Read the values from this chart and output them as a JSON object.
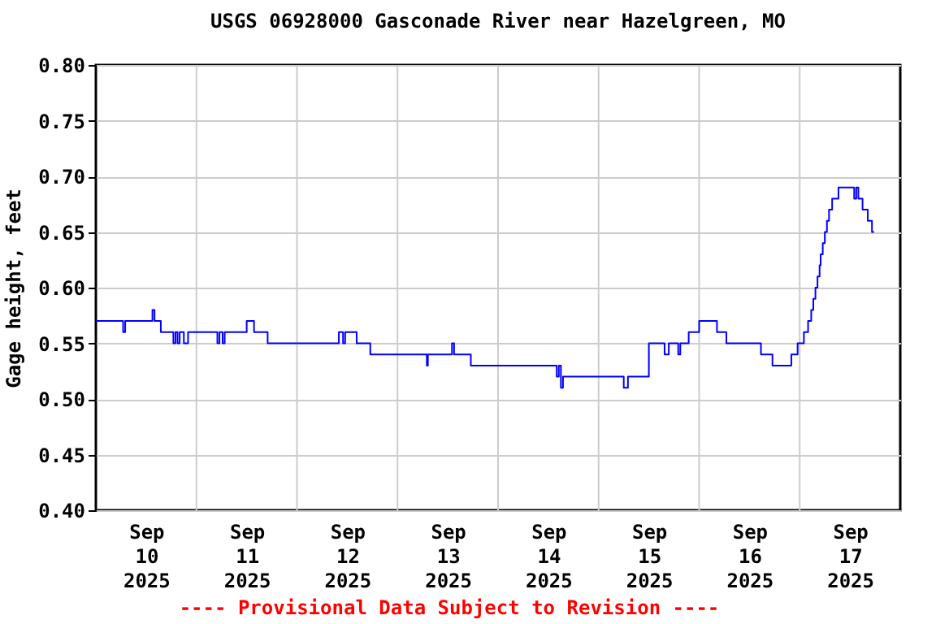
{
  "chart_data": {
    "type": "step",
    "title": "USGS 06928000 Gasconade River near Hazelgreen, MO",
    "ylabel": "Gage height, feet",
    "annotations": [
      "---- Provisional Data Subject to Revision ----"
    ],
    "x": [
      "2025-09-10T00:00",
      "2025-09-10T06:30",
      "2025-09-10T07:00",
      "2025-09-10T13:30",
      "2025-09-10T14:00",
      "2025-09-10T15:30",
      "2025-09-10T18:30",
      "2025-09-10T19:00",
      "2025-09-10T19:30",
      "2025-09-10T20:00",
      "2025-09-10T21:00",
      "2025-09-10T22:00",
      "2025-09-11T05:00",
      "2025-09-11T05:30",
      "2025-09-11T06:15",
      "2025-09-11T06:45",
      "2025-09-11T12:00",
      "2025-09-11T13:45",
      "2025-09-11T17:00",
      "2025-09-12T10:00",
      "2025-09-12T11:00",
      "2025-09-12T11:30",
      "2025-09-12T14:15",
      "2025-09-12T17:30",
      "2025-09-13T07:00",
      "2025-09-13T07:15",
      "2025-09-13T13:00",
      "2025-09-13T13:30",
      "2025-09-13T17:30",
      "2025-09-14T14:00",
      "2025-09-14T14:30",
      "2025-09-14T15:00",
      "2025-09-14T15:30",
      "2025-09-15T06:00",
      "2025-09-15T07:00",
      "2025-09-15T12:00",
      "2025-09-15T15:45",
      "2025-09-15T16:45",
      "2025-09-15T19:00",
      "2025-09-15T19:30",
      "2025-09-15T21:30",
      "2025-09-16T00:00",
      "2025-09-16T04:15",
      "2025-09-16T06:30",
      "2025-09-16T14:45",
      "2025-09-16T17:30",
      "2025-09-16T22:00",
      "2025-09-16T23:30",
      "2025-09-17T01:00",
      "2025-09-17T02:00",
      "2025-09-17T02:45",
      "2025-09-17T03:15",
      "2025-09-17T03:45",
      "2025-09-17T04:15",
      "2025-09-17T04:45",
      "2025-09-17T05:00",
      "2025-09-17T05:30",
      "2025-09-17T06:00",
      "2025-09-17T06:30",
      "2025-09-17T07:00",
      "2025-09-17T07:45",
      "2025-09-17T09:15",
      "2025-09-17T13:00",
      "2025-09-17T13:30",
      "2025-09-17T14:00",
      "2025-09-17T15:00",
      "2025-09-17T16:15",
      "2025-09-17T17:15",
      "2025-09-17T17:45"
    ],
    "series": [
      {
        "color": "#0000ff",
        "values": [
          0.57,
          0.56,
          0.57,
          0.58,
          0.57,
          0.56,
          0.55,
          0.56,
          0.55,
          0.56,
          0.55,
          0.56,
          0.55,
          0.56,
          0.55,
          0.56,
          0.57,
          0.56,
          0.55,
          0.56,
          0.55,
          0.56,
          0.55,
          0.54,
          0.53,
          0.54,
          0.55,
          0.54,
          0.53,
          0.52,
          0.53,
          0.51,
          0.52,
          0.51,
          0.52,
          0.55,
          0.54,
          0.55,
          0.54,
          0.55,
          0.56,
          0.57,
          0.56,
          0.55,
          0.54,
          0.53,
          0.54,
          0.55,
          0.56,
          0.57,
          0.58,
          0.59,
          0.6,
          0.61,
          0.62,
          0.63,
          0.64,
          0.65,
          0.66,
          0.67,
          0.68,
          0.69,
          0.68,
          0.69,
          0.68,
          0.67,
          0.66,
          0.65,
          0.65
        ]
      }
    ],
    "xlim": [
      "2025-09-10T00:00",
      "2025-09-18T00:00"
    ],
    "xticks": [
      {
        "value": "2025-09-10T12:00",
        "label": "Sep 10 2025"
      },
      {
        "value": "2025-09-11T00:00",
        "label": null
      },
      {
        "value": "2025-09-11T12:00",
        "label": "Sep 11 2025"
      },
      {
        "value": "2025-09-12T00:00",
        "label": null
      },
      {
        "value": "2025-09-12T12:00",
        "label": "Sep 12 2025"
      },
      {
        "value": "2025-09-13T00:00",
        "label": null
      },
      {
        "value": "2025-09-13T12:00",
        "label": "Sep 13 2025"
      },
      {
        "value": "2025-09-14T00:00",
        "label": null
      },
      {
        "value": "2025-09-14T12:00",
        "label": "Sep 14 2025"
      },
      {
        "value": "2025-09-15T00:00",
        "label": null
      },
      {
        "value": "2025-09-15T12:00",
        "label": "Sep 15 2025"
      },
      {
        "value": "2025-09-16T00:00",
        "label": null
      },
      {
        "value": "2025-09-16T12:00",
        "label": "Sep 16 2025"
      },
      {
        "value": "2025-09-17T00:00",
        "label": null
      },
      {
        "value": "2025-09-17T12:00",
        "label": "Sep 17 2025"
      }
    ],
    "ylim": [
      0.4,
      0.8
    ],
    "yticks": [
      {
        "value": 0.4,
        "label": "0.40"
      },
      {
        "value": 0.45,
        "label": "0.45"
      },
      {
        "value": 0.5,
        "label": "0.50"
      },
      {
        "value": 0.55,
        "label": "0.55"
      },
      {
        "value": 0.6,
        "label": "0.60"
      },
      {
        "value": 0.65,
        "label": "0.65"
      },
      {
        "value": 0.7,
        "label": "0.70"
      },
      {
        "value": 0.75,
        "label": "0.75"
      },
      {
        "value": 0.8,
        "label": "0.80"
      }
    ],
    "grid": true,
    "legend": false
  }
}
